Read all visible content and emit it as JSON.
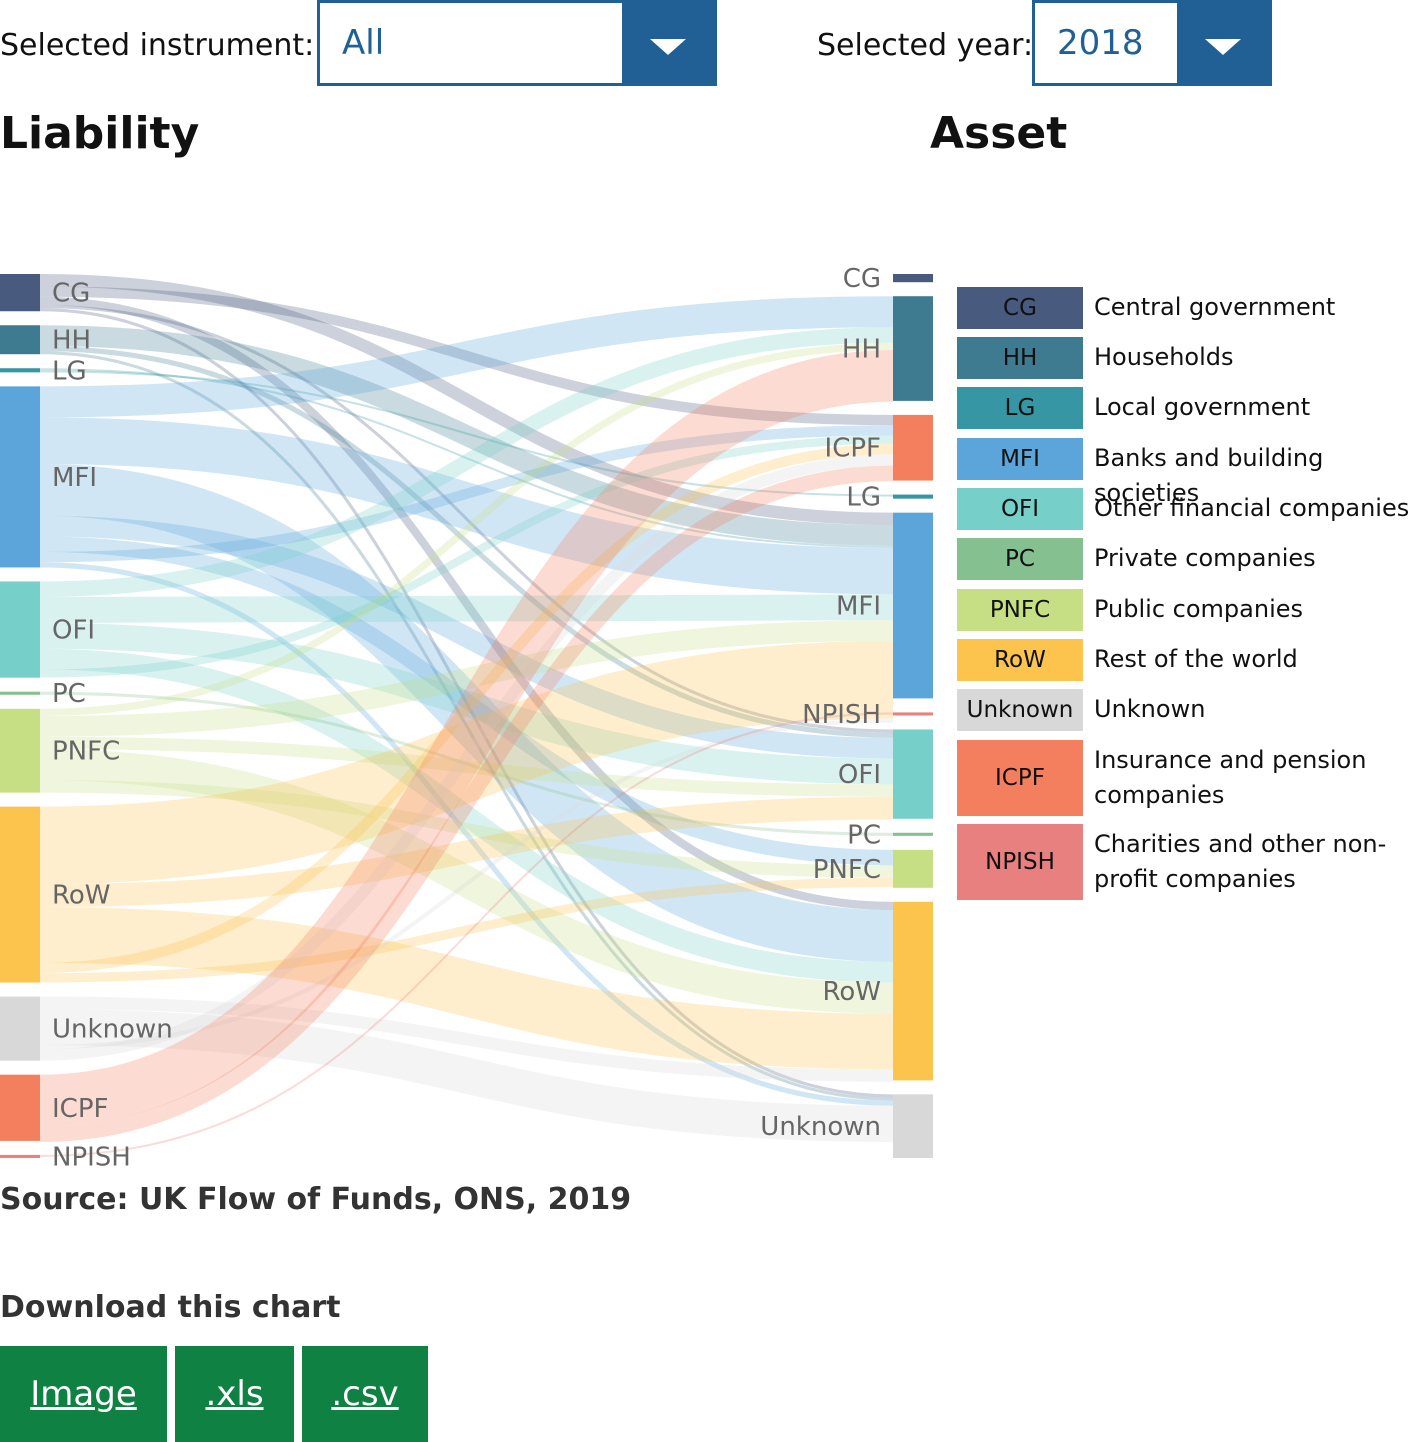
{
  "controls": {
    "instrument_label": "Selected instrument:",
    "instrument_value": "All",
    "year_label": "Selected year:",
    "year_value": "2018"
  },
  "headings": {
    "left": "Liability",
    "right": "Asset"
  },
  "colors": {
    "CG": "#485a7d",
    "HH": "#3e7a90",
    "LG": "#3696a3",
    "MFI": "#5ba5db",
    "OFI": "#76cfc8",
    "PC": "#85c090",
    "PNFC": "#c6df84",
    "RoW": "#fcc34d",
    "Unknown": "#d8d8d8",
    "ICPF": "#f37f5e",
    "NPISH": "#e88080",
    "control": "#206095",
    "download": "#0f8243"
  },
  "legend": [
    {
      "code": "CG",
      "label": "Central government"
    },
    {
      "code": "HH",
      "label": "Households"
    },
    {
      "code": "LG",
      "label": "Local government"
    },
    {
      "code": "MFI",
      "label": "Banks and building societies"
    },
    {
      "code": "OFI",
      "label": "Other financial companies"
    },
    {
      "code": "PC",
      "label": "Private companies"
    },
    {
      "code": "PNFC",
      "label": "Public companies"
    },
    {
      "code": "RoW",
      "label": "Rest of the world"
    },
    {
      "code": "Unknown",
      "label": "Unknown"
    },
    {
      "code": "ICPF",
      "label": "Insurance and pension companies"
    },
    {
      "code": "NPISH",
      "label": "Charities and other non-profit companies"
    }
  ],
  "chart_data": {
    "type": "sankey",
    "source_side": "Liability",
    "target_side": "Asset",
    "liability_nodes": [
      {
        "name": "CG",
        "value": 3.6
      },
      {
        "name": "HH",
        "value": 2.8
      },
      {
        "name": "LG",
        "value": 0.4
      },
      {
        "name": "MFI",
        "value": 17.5
      },
      {
        "name": "OFI",
        "value": 9.3
      },
      {
        "name": "PC",
        "value": 0.3
      },
      {
        "name": "PNFC",
        "value": 8.1
      },
      {
        "name": "RoW",
        "value": 17.0
      },
      {
        "name": "Unknown",
        "value": 6.2
      },
      {
        "name": "ICPF",
        "value": 6.4
      },
      {
        "name": "NPISH",
        "value": 0.3
      }
    ],
    "asset_nodes": [
      {
        "name": "CG",
        "value": 0.8
      },
      {
        "name": "HH",
        "value": 10.2
      },
      {
        "name": "ICPF",
        "value": 6.4
      },
      {
        "name": "LG",
        "value": 0.4
      },
      {
        "name": "MFI",
        "value": 18.1
      },
      {
        "name": "NPISH",
        "value": 0.3
      },
      {
        "name": "OFI",
        "value": 8.7
      },
      {
        "name": "PC",
        "value": 0.3
      },
      {
        "name": "PNFC",
        "value": 3.7
      },
      {
        "name": "RoW",
        "value": 17.4
      },
      {
        "name": "Unknown",
        "value": 6.2
      }
    ],
    "links": [
      {
        "source": "CG",
        "target": "MFI",
        "value": 1.2
      },
      {
        "source": "CG",
        "target": "ICPF",
        "value": 1.0
      },
      {
        "source": "CG",
        "target": "RoW",
        "value": 0.8
      },
      {
        "source": "CG",
        "target": "OFI",
        "value": 0.3
      },
      {
        "source": "CG",
        "target": "Unknown",
        "value": 0.3
      },
      {
        "source": "HH",
        "target": "MFI",
        "value": 2.0
      },
      {
        "source": "HH",
        "target": "OFI",
        "value": 0.5
      },
      {
        "source": "HH",
        "target": "Unknown",
        "value": 0.3
      },
      {
        "source": "LG",
        "target": "MFI",
        "value": 0.2
      },
      {
        "source": "LG",
        "target": "LG",
        "value": 0.2
      },
      {
        "source": "MFI",
        "target": "HH",
        "value": 3.0
      },
      {
        "source": "MFI",
        "target": "MFI",
        "value": 4.5
      },
      {
        "source": "MFI",
        "target": "RoW",
        "value": 5.0
      },
      {
        "source": "MFI",
        "target": "OFI",
        "value": 2.0
      },
      {
        "source": "MFI",
        "target": "PNFC",
        "value": 1.5
      },
      {
        "source": "MFI",
        "target": "ICPF",
        "value": 1.0
      },
      {
        "source": "MFI",
        "target": "Unknown",
        "value": 0.5
      },
      {
        "source": "OFI",
        "target": "HH",
        "value": 1.5
      },
      {
        "source": "OFI",
        "target": "MFI",
        "value": 2.5
      },
      {
        "source": "OFI",
        "target": "OFI",
        "value": 2.5
      },
      {
        "source": "OFI",
        "target": "RoW",
        "value": 2.0
      },
      {
        "source": "OFI",
        "target": "ICPF",
        "value": 0.8
      },
      {
        "source": "PC",
        "target": "PC",
        "value": 0.3
      },
      {
        "source": "PNFC",
        "target": "HH",
        "value": 0.7
      },
      {
        "source": "PNFC",
        "target": "MFI",
        "value": 2.0
      },
      {
        "source": "PNFC",
        "target": "OFI",
        "value": 1.2
      },
      {
        "source": "PNFC",
        "target": "RoW",
        "value": 3.0
      },
      {
        "source": "PNFC",
        "target": "PNFC",
        "value": 1.2
      },
      {
        "source": "RoW",
        "target": "MFI",
        "value": 7.5
      },
      {
        "source": "RoW",
        "target": "OFI",
        "value": 2.2
      },
      {
        "source": "RoW",
        "target": "RoW",
        "value": 5.4
      },
      {
        "source": "RoW",
        "target": "ICPF",
        "value": 1.0
      },
      {
        "source": "RoW",
        "target": "PNFC",
        "value": 0.9
      },
      {
        "source": "Unknown",
        "target": "RoW",
        "value": 1.2
      },
      {
        "source": "Unknown",
        "target": "Unknown",
        "value": 3.5
      },
      {
        "source": "Unknown",
        "target": "MFI",
        "value": 0.4
      },
      {
        "source": "Unknown",
        "target": "ICPF",
        "value": 1.1
      },
      {
        "source": "ICPF",
        "target": "HH",
        "value": 5.0
      },
      {
        "source": "ICPF",
        "target": "ICPF",
        "value": 1.5
      },
      {
        "source": "NPISH",
        "target": "NPISH",
        "value": 0.2
      },
      {
        "source": "CG",
        "target": "CG",
        "value": 0.0
      },
      {
        "source": "HH",
        "target": "CG",
        "value": 0.0
      }
    ]
  },
  "source": "Source: UK Flow of Funds, ONS, 2019",
  "download": {
    "title": "Download this chart",
    "image": "Image",
    "xls": ".xls",
    "csv": ".csv"
  }
}
